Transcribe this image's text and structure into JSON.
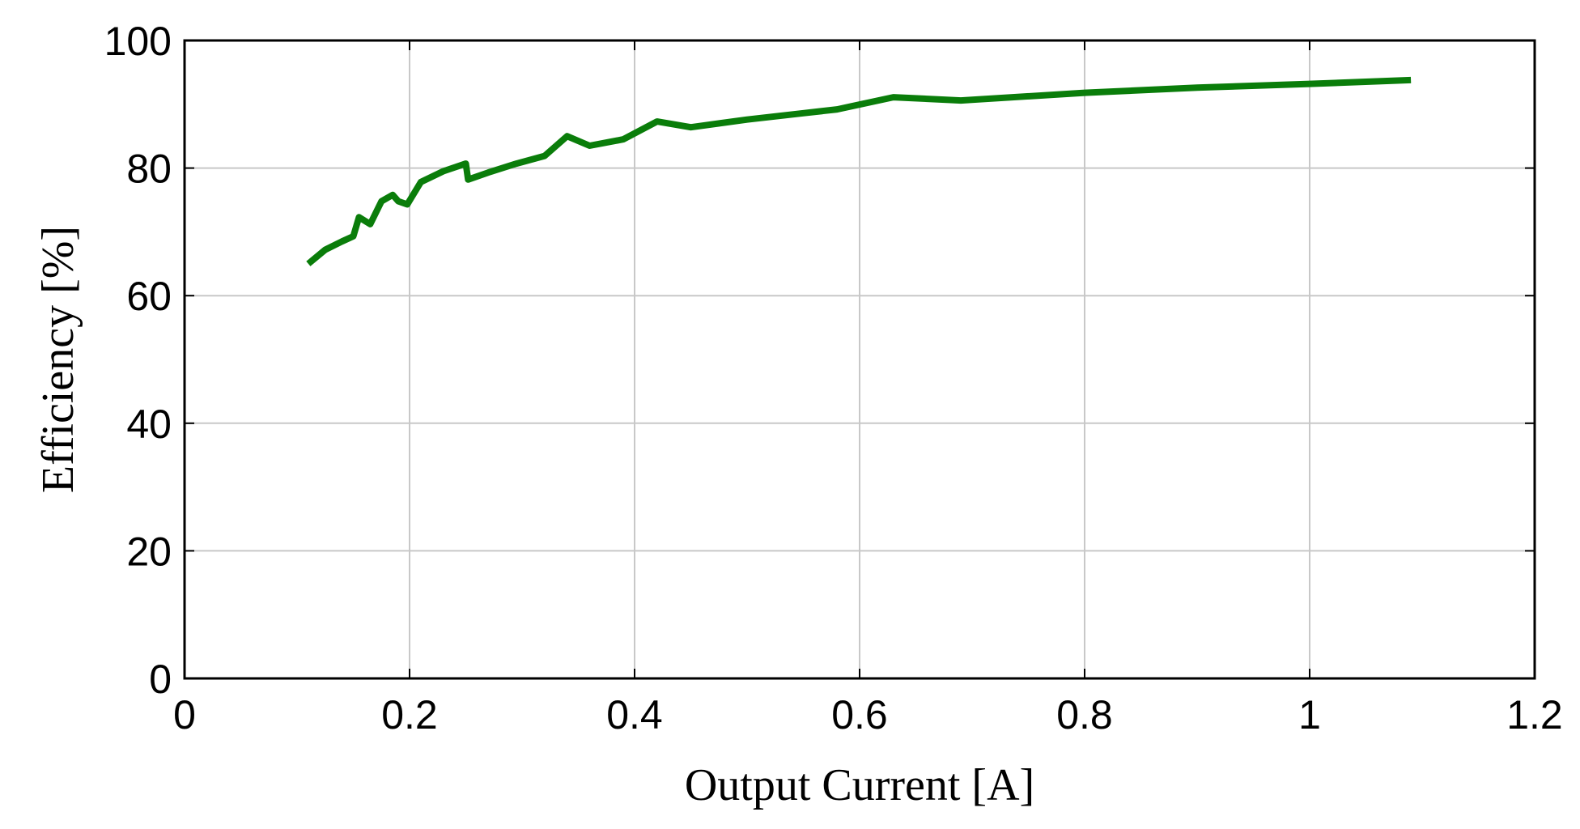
{
  "chart_data": {
    "type": "line",
    "title": "",
    "xlabel": "Output Current [A]",
    "ylabel": "Efficiency [%]",
    "xlim": [
      0,
      1.2
    ],
    "ylim": [
      0,
      100
    ],
    "xticks": [
      0,
      0.2,
      0.4,
      0.6,
      0.8,
      1.0,
      1.2
    ],
    "xtick_labels": [
      "0",
      "0.2",
      "0.4",
      "0.6",
      "0.8",
      "1",
      "1.2"
    ],
    "yticks": [
      0,
      20,
      40,
      60,
      80,
      100
    ],
    "ytick_labels": [
      "0",
      "20",
      "40",
      "60",
      "80",
      "100"
    ],
    "grid": true,
    "legend": "none",
    "series": [
      {
        "color": "#0a7d0a",
        "x": [
          0.11,
          0.125,
          0.14,
          0.15,
          0.155,
          0.165,
          0.175,
          0.185,
          0.19,
          0.198,
          0.21,
          0.23,
          0.25,
          0.252,
          0.27,
          0.295,
          0.32,
          0.34,
          0.36,
          0.39,
          0.42,
          0.45,
          0.5,
          0.55,
          0.58,
          0.63,
          0.69,
          0.8,
          0.9,
          1.0,
          1.09
        ],
        "y": [
          65.0,
          67.2,
          68.5,
          69.3,
          72.3,
          71.2,
          74.8,
          75.8,
          74.8,
          74.3,
          77.8,
          79.5,
          80.7,
          78.2,
          79.3,
          80.7,
          81.9,
          85.0,
          83.5,
          84.5,
          87.3,
          86.4,
          87.6,
          88.6,
          89.2,
          91.1,
          90.6,
          91.8,
          92.6,
          93.2,
          93.8
        ]
      }
    ]
  }
}
